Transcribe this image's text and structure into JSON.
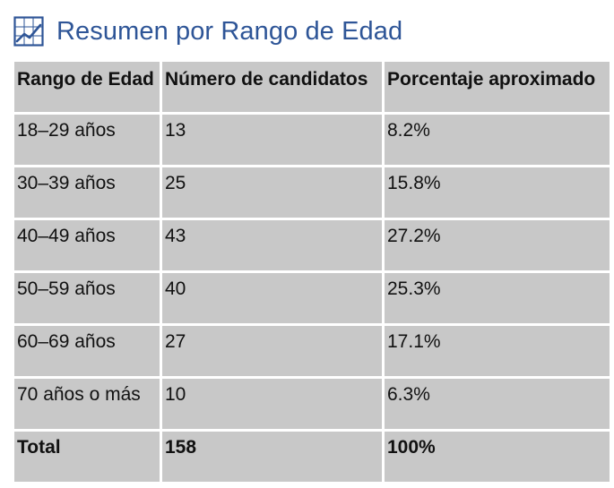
{
  "title": "Resumen por Rango de Edad",
  "icon": "chart-icon",
  "accent_color": "#2e5597",
  "table": {
    "headers": [
      "Rango de Edad",
      "Número de candidatos",
      "Porcentaje aproximado"
    ],
    "rows": [
      [
        "18–29 años",
        "13",
        "8.2%"
      ],
      [
        "30–39 años",
        "25",
        "15.8%"
      ],
      [
        "40–49 años",
        "43",
        "27.2%"
      ],
      [
        "50–59 años",
        "40",
        "25.3%"
      ],
      [
        "60–69 años",
        "27",
        "17.1%"
      ],
      [
        "70 años o más",
        "10",
        "6.3%"
      ]
    ],
    "total": [
      "Total",
      "158",
      "100%"
    ]
  }
}
